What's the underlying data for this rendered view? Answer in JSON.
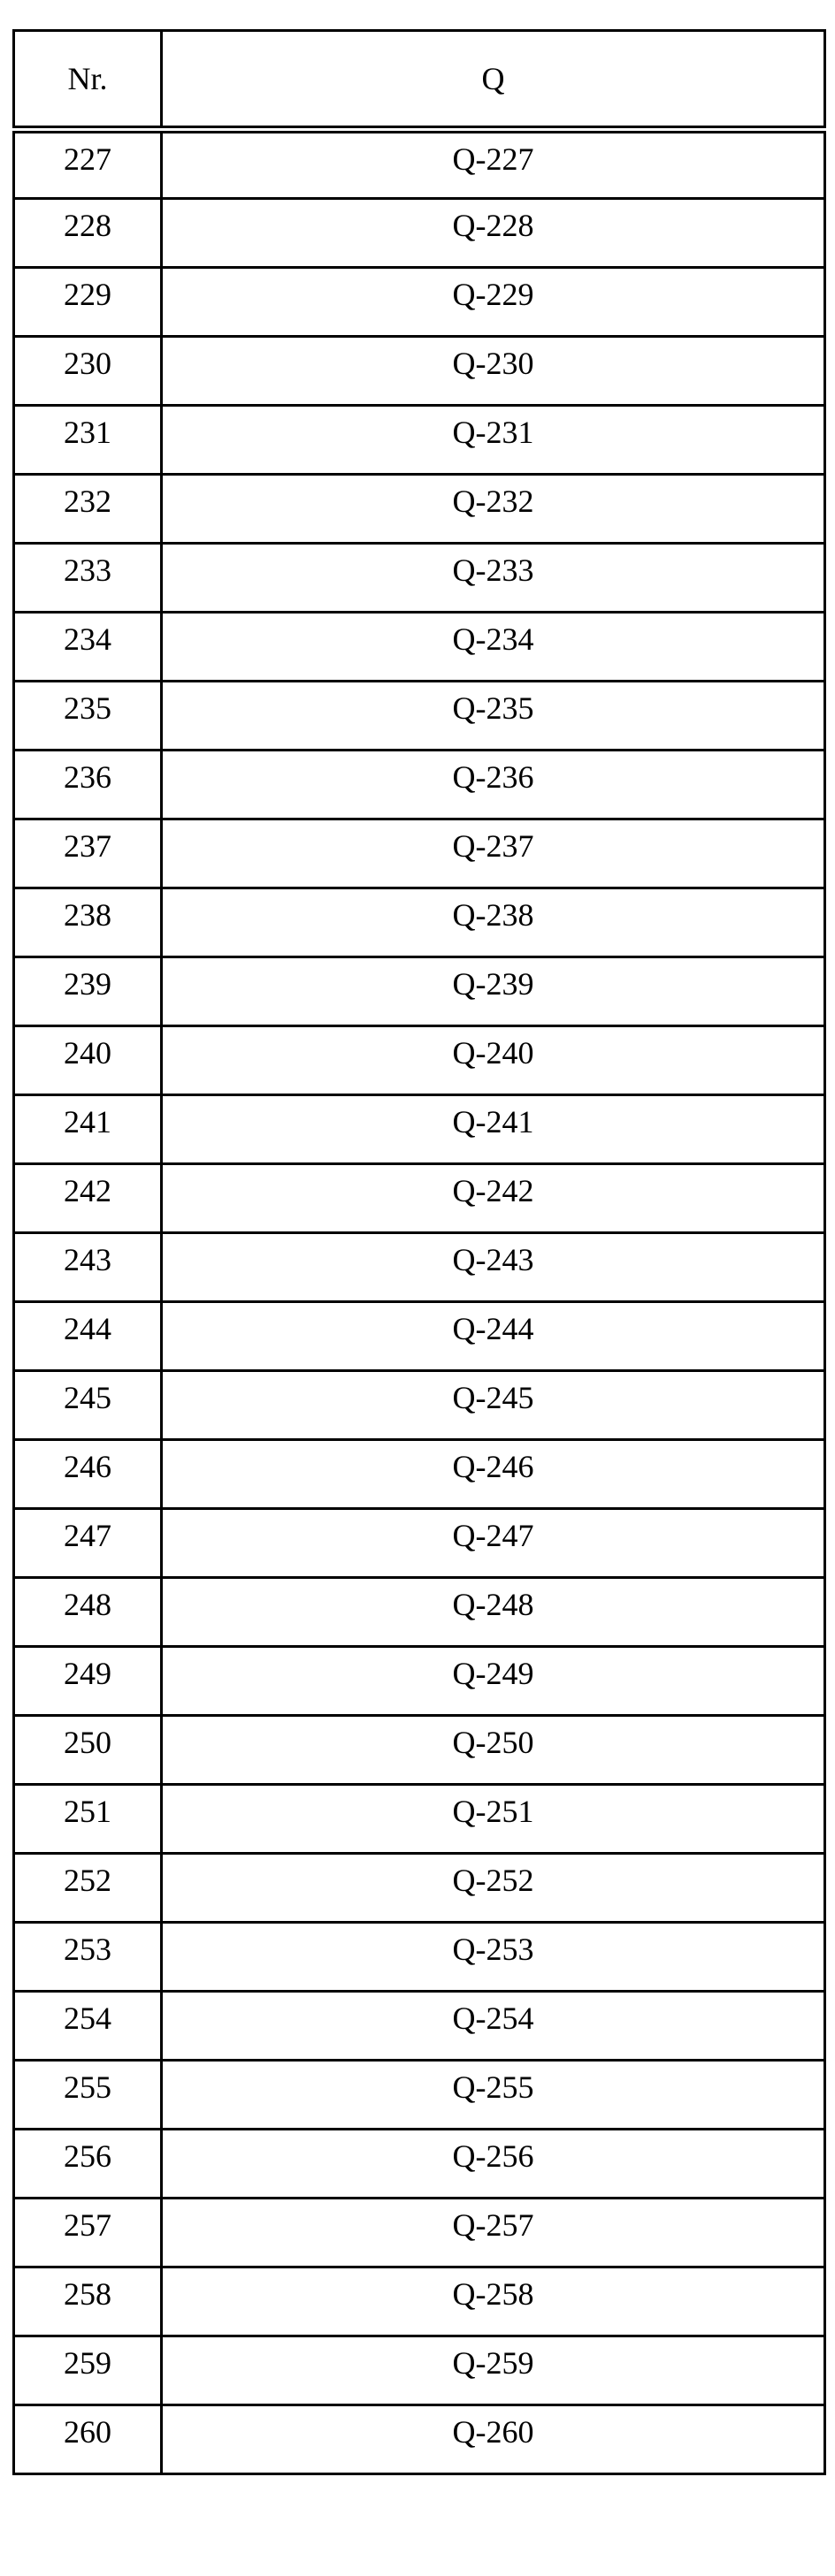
{
  "table": {
    "headers": [
      "Nr.",
      "Q"
    ],
    "rows": [
      [
        "227",
        "Q-227"
      ],
      [
        "228",
        "Q-228"
      ],
      [
        "229",
        "Q-229"
      ],
      [
        "230",
        "Q-230"
      ],
      [
        "231",
        "Q-231"
      ],
      [
        "232",
        "Q-232"
      ],
      [
        "233",
        "Q-233"
      ],
      [
        "234",
        "Q-234"
      ],
      [
        "235",
        "Q-235"
      ],
      [
        "236",
        "Q-236"
      ],
      [
        "237",
        "Q-237"
      ],
      [
        "238",
        "Q-238"
      ],
      [
        "239",
        "Q-239"
      ],
      [
        "240",
        "Q-240"
      ],
      [
        "241",
        "Q-241"
      ],
      [
        "242",
        "Q-242"
      ],
      [
        "243",
        "Q-243"
      ],
      [
        "244",
        "Q-244"
      ],
      [
        "245",
        "Q-245"
      ],
      [
        "246",
        "Q-246"
      ],
      [
        "247",
        "Q-247"
      ],
      [
        "248",
        "Q-248"
      ],
      [
        "249",
        "Q-249"
      ],
      [
        "250",
        "Q-250"
      ],
      [
        "251",
        "Q-251"
      ],
      [
        "252",
        "Q-252"
      ],
      [
        "253",
        "Q-253"
      ],
      [
        "254",
        "Q-254"
      ],
      [
        "255",
        "Q-255"
      ],
      [
        "256",
        "Q-256"
      ],
      [
        "257",
        "Q-257"
      ],
      [
        "258",
        "Q-258"
      ],
      [
        "259",
        "Q-259"
      ],
      [
        "260",
        "Q-260"
      ]
    ]
  }
}
